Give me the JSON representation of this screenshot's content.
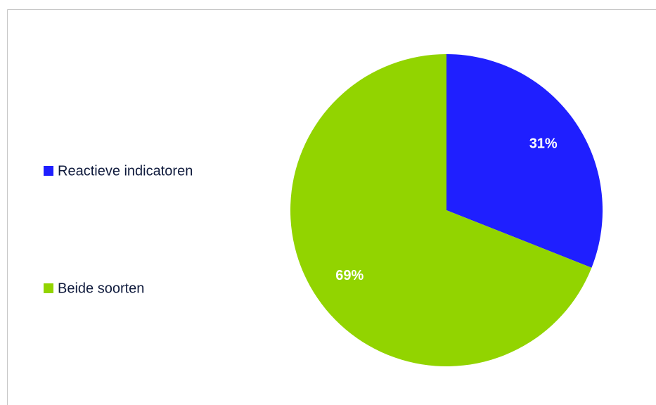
{
  "chart_data": {
    "type": "pie",
    "categories": [
      "Reactieve indicatoren",
      "Beide soorten"
    ],
    "values": [
      31,
      69
    ],
    "value_labels": [
      "31%",
      "69%"
    ],
    "colors": [
      "#1f1fff",
      "#92d400"
    ]
  }
}
